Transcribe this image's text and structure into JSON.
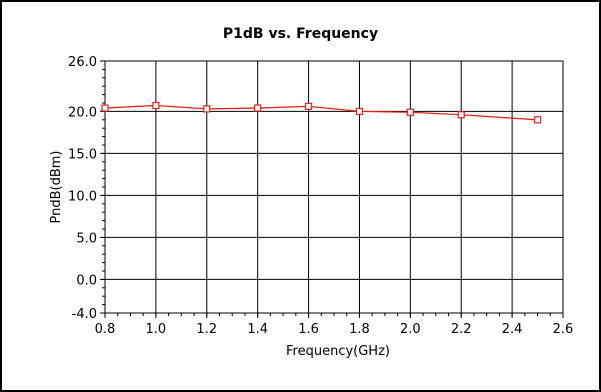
{
  "chart_data": {
    "type": "line",
    "title": "P1dB vs. Frequency",
    "xlabel": "Frequency(GHz)",
    "ylabel": "PndB(dBm)",
    "xlim": [
      0.8,
      2.6
    ],
    "ylim": [
      -4.0,
      26.0
    ],
    "xticks": [
      "0.8",
      "1.0",
      "1.2",
      "1.4",
      "1.6",
      "1.8",
      "2.0",
      "2.2",
      "2.4",
      "2.6"
    ],
    "yticks": [
      "-4.0",
      "0.0",
      "5.0",
      "10.0",
      "15.0",
      "20.0",
      "26.0"
    ],
    "grid": true,
    "series": [
      {
        "color": "#e8201a",
        "marker": "square",
        "x": [
          0.8,
          1.0,
          1.2,
          1.4,
          1.6,
          1.8,
          2.0,
          2.2,
          2.5
        ],
        "y": [
          20.4,
          20.7,
          20.3,
          20.4,
          20.6,
          20.0,
          19.9,
          19.6,
          19.0
        ]
      }
    ]
  }
}
